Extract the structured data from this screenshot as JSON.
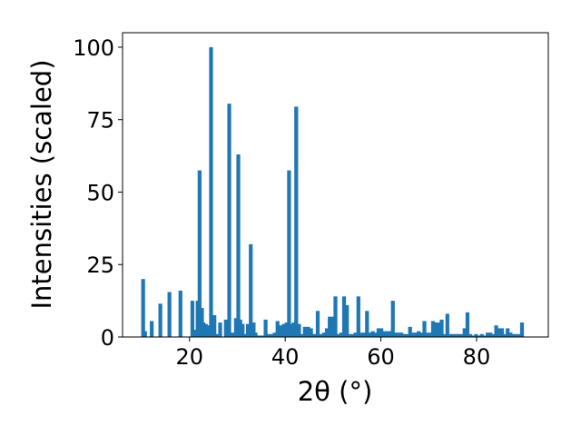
{
  "chart_data": {
    "type": "bar",
    "title": "",
    "xlabel": "2θ (°)",
    "ylabel": "Intensities (scaled)",
    "xlim": [
      6,
      95
    ],
    "ylim": [
      0,
      105
    ],
    "xticks": [
      20,
      40,
      60,
      80
    ],
    "yticks": [
      0,
      25,
      50,
      75,
      100
    ],
    "grid": false,
    "bar_color": "#1f77b4",
    "bar_width": 0.8,
    "x": [
      10.3,
      10.7,
      12.1,
      13.9,
      15.8,
      18.1,
      20.6,
      21.1,
      21.7,
      22.1,
      22.6,
      22.9,
      23.4,
      23.8,
      24.5,
      25.2,
      25.6,
      26.4,
      27.6,
      28.3,
      29.0,
      29.7,
      30.2,
      30.6,
      31.1,
      31.6,
      32.2,
      32.8,
      33.4,
      33.8,
      34.5,
      35.2,
      35.9,
      36.6,
      37.2,
      37.8,
      38.4,
      39.1,
      39.7,
      40.3,
      40.8,
      41.3,
      41.8,
      42.3,
      42.9,
      43.5,
      44.1,
      44.8,
      45.4,
      46.1,
      46.8,
      47.4,
      48.1,
      48.7,
      49.3,
      49.9,
      50.5,
      51.1,
      51.7,
      52.3,
      52.9,
      53.5,
      54.1,
      54.7,
      55.3,
      55.9,
      56.5,
      57.1,
      57.7,
      58.3,
      58.9,
      59.5,
      60.1,
      60.7,
      61.3,
      61.9,
      62.5,
      63.1,
      63.7,
      64.3,
      64.9,
      65.5,
      66.1,
      66.7,
      67.3,
      67.9,
      68.5,
      69.1,
      69.7,
      70.3,
      70.9,
      71.5,
      72.1,
      72.7,
      73.3,
      73.9,
      74.5,
      75.1,
      75.7,
      76.3,
      76.9,
      77.5,
      78.1,
      78.7,
      79.3,
      79.9,
      80.5,
      81.1,
      81.7,
      82.3,
      82.9,
      83.5,
      84.1,
      84.7,
      85.3,
      85.9,
      86.5,
      87.1,
      87.7,
      88.3,
      88.9,
      89.5
    ],
    "values": [
      20,
      2,
      5.5,
      11.5,
      15.5,
      16,
      12.5,
      2.5,
      12.5,
      57.5,
      10,
      5,
      4.5,
      4,
      100,
      7.5,
      1,
      5,
      6,
      80.5,
      1.5,
      6.5,
      63,
      6,
      4.5,
      1,
      4.5,
      32,
      5,
      1.5,
      0.5,
      0.5,
      6,
      1,
      1,
      1.5,
      5.5,
      4,
      4.5,
      5,
      57.5,
      4.5,
      5,
      79.5,
      4.5,
      1,
      3.5,
      3.5,
      3,
      1,
      9,
      1,
      1.5,
      3,
      7,
      7,
      14,
      1,
      1.5,
      14,
      11,
      1,
      1,
      1.5,
      14,
      1.5,
      1.5,
      9,
      1.5,
      2,
      1.5,
      3,
      3,
      2,
      2,
      2,
      12.5,
      1.5,
      1.5,
      1.5,
      1,
      1,
      3.5,
      1.5,
      1.5,
      2,
      1.5,
      5.5,
      1.5,
      1.5,
      5.5,
      5,
      5,
      6,
      1,
      8,
      1,
      1,
      1,
      1,
      1,
      3,
      8.5,
      1,
      0.5,
      1,
      0.5,
      1,
      0.5,
      1.5,
      1.5,
      1,
      4,
      3,
      3,
      1,
      3,
      1.5,
      1,
      1,
      1,
      5
    ]
  }
}
